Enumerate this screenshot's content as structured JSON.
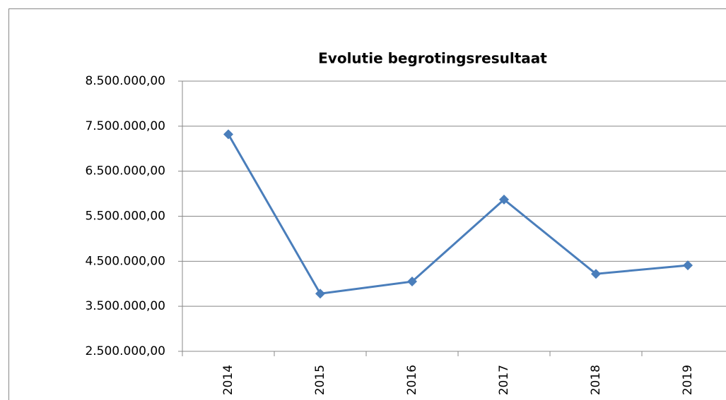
{
  "chart_data": {
    "type": "line",
    "title": "Evolutie begrotingsresultaat",
    "categories": [
      "2014",
      "2015",
      "2016",
      "2017",
      "2018",
      "2019"
    ],
    "series": [
      {
        "name": "Begrotingsresultaat",
        "color": "#4a7ebb",
        "values": [
          7320000,
          3780000,
          4050000,
          5870000,
          4220000,
          4410000
        ]
      }
    ],
    "ylim": [
      2500000,
      8500000
    ],
    "yticks": [
      {
        "value": 2500000,
        "label": "2.500.000,00"
      },
      {
        "value": 3500000,
        "label": "3.500.000,00"
      },
      {
        "value": 4500000,
        "label": "4.500.000,00"
      },
      {
        "value": 5500000,
        "label": "5.500.000,00"
      },
      {
        "value": 6500000,
        "label": "6.500.000,00"
      },
      {
        "value": 7500000,
        "label": "7.500.000,00"
      },
      {
        "value": 8500000,
        "label": "8.500.000,00"
      }
    ],
    "grid": true,
    "legend": false
  }
}
